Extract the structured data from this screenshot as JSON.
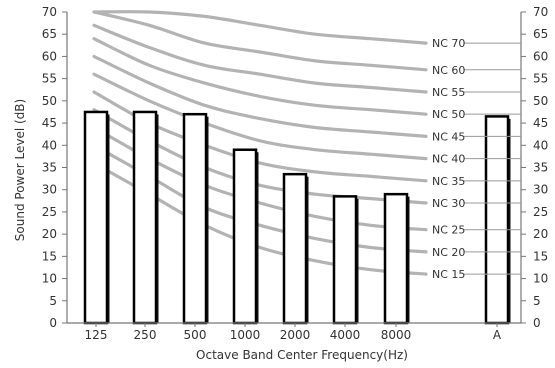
{
  "chart_data": {
    "type": "bar",
    "title": "",
    "xlabel": "Octave Band Center Frequency(Hz)",
    "ylabel": "Sound Power Level (dB)",
    "ylim": [
      0,
      70
    ],
    "yticks": [
      "0",
      "5",
      "10",
      "15",
      "20",
      "25",
      "30",
      "35",
      "40",
      "45",
      "50",
      "55",
      "60",
      "65",
      "70"
    ],
    "grid": false,
    "right_axis": true,
    "categories": [
      "125",
      "250",
      "500",
      "1000",
      "2000",
      "4000",
      "8000",
      "A"
    ],
    "values": [
      47.5,
      47.5,
      47,
      39,
      33.5,
      28.5,
      29,
      46.5
    ],
    "bar_style": {
      "fill": "#ffffff",
      "edge": "#000000",
      "shadow": "#111111"
    },
    "nc_curves": [
      {
        "name": "NC 15",
        "values": [
          36,
          29,
          22,
          17,
          14,
          12,
          11
        ]
      },
      {
        "name": "NC 20",
        "values": [
          40,
          33,
          26,
          22,
          19,
          17,
          16
        ]
      },
      {
        "name": "NC 25",
        "values": [
          44,
          37,
          31,
          27,
          24,
          22,
          21
        ]
      },
      {
        "name": "NC 30",
        "values": [
          48,
          41,
          35,
          31,
          29,
          28,
          27
        ]
      },
      {
        "name": "NC 35",
        "values": [
          52,
          45,
          40,
          36,
          34,
          33,
          32
        ]
      },
      {
        "name": "NC 40",
        "values": [
          56,
          50,
          45,
          41,
          39,
          38,
          37
        ]
      },
      {
        "name": "NC 45",
        "values": [
          60,
          54,
          49,
          46,
          44,
          43,
          42
        ]
      },
      {
        "name": "NC 50",
        "values": [
          64,
          58,
          54,
          51,
          49,
          48,
          47
        ]
      },
      {
        "name": "NC 55",
        "values": [
          67,
          62,
          58,
          56,
          54,
          53,
          52
        ]
      },
      {
        "name": "NC 60",
        "values": [
          70,
          67,
          63,
          61,
          59,
          58,
          57
        ]
      },
      {
        "name": "NC 70",
        "values": [
          70,
          70,
          69,
          67,
          65,
          64,
          63
        ]
      }
    ],
    "curve_color": "#b3b3b3"
  }
}
